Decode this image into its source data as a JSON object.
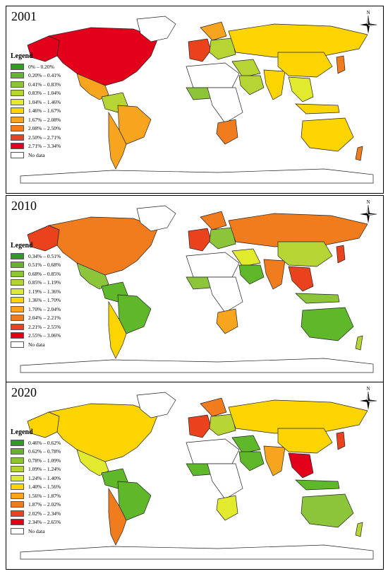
{
  "panels": [
    {
      "year": "2001",
      "legend_title": "Legend",
      "classes": [
        {
          "label": "0% – 0.20%",
          "color": "#2e9e1e"
        },
        {
          "label": "0.20% – 0.41%",
          "color": "#5fb82a"
        },
        {
          "label": "0.41% – 0.83%",
          "color": "#8cc53a"
        },
        {
          "label": "0.83% – 1.04%",
          "color": "#b6d433"
        },
        {
          "label": "1.04% – 1.46%",
          "color": "#e1ea2c"
        },
        {
          "label": "1.46% – 1.67%",
          "color": "#fcd400"
        },
        {
          "label": "1.67% – 2.08%",
          "color": "#f7a51f"
        },
        {
          "label": "2.08% – 2.50%",
          "color": "#f07c1e"
        },
        {
          "label": "2.50% – 2.71%",
          "color": "#e9421c"
        },
        {
          "label": "2.71% – 3.34%",
          "color": "#e3001b"
        }
      ],
      "no_data_label": "No data",
      "region_colors": {
        "north_america": "#e3001b",
        "alaska": "#e3001b",
        "central_america": "#f7a51f",
        "south_america_n": "#b6d433",
        "brazil": "#f7a51f",
        "south_america_s": "#f7a51f",
        "greenland": "#ffffff",
        "western_europe": "#e9421c",
        "scandinavia": "#f7a51f",
        "eastern_europe": "#b6d433",
        "russia": "#fcd400",
        "middle_east": "#b6d433",
        "arabia": "#b6d433",
        "north_africa": "#ffffff",
        "west_africa": "#8cc53a",
        "central_africa": "#ffffff",
        "south_africa": "#f07c1e",
        "india": "#fcd400",
        "china": "#fcd400",
        "se_asia": "#e1ea2c",
        "japan": "#f07c1e",
        "indonesia": "#fcd400",
        "australia": "#fcd400",
        "new_zealand": "#f07c1e",
        "antarctica": "#ffffff"
      }
    },
    {
      "year": "2010",
      "legend_title": "Legend",
      "classes": [
        {
          "label": "0.34% – 0.51%",
          "color": "#2e9e1e"
        },
        {
          "label": "0.51% – 0.68%",
          "color": "#5fb82a"
        },
        {
          "label": "0.68% – 0.85%",
          "color": "#8cc53a"
        },
        {
          "label": "0.85% – 1.19%",
          "color": "#b6d433"
        },
        {
          "label": "1.19% – 1.36%",
          "color": "#e1ea2c"
        },
        {
          "label": "1.36% – 1.70%",
          "color": "#fcd400"
        },
        {
          "label": "1.70% – 2.04%",
          "color": "#f7a51f"
        },
        {
          "label": "2.04% – 2.21%",
          "color": "#f07c1e"
        },
        {
          "label": "2.21% – 2.55%",
          "color": "#e9421c"
        },
        {
          "label": "2.55% – 3.06%",
          "color": "#e3001b"
        }
      ],
      "no_data_label": "No data",
      "region_colors": {
        "north_america": "#f07c1e",
        "alaska": "#e9421c",
        "central_america": "#8cc53a",
        "south_america_n": "#5fb82a",
        "brazil": "#5fb82a",
        "south_america_s": "#fcd400",
        "greenland": "#ffffff",
        "western_europe": "#e9421c",
        "scandinavia": "#f07c1e",
        "eastern_europe": "#8cc53a",
        "russia": "#f07c1e",
        "middle_east": "#e1ea2c",
        "arabia": "#5fb82a",
        "north_africa": "#ffffff",
        "west_africa": "#8cc53a",
        "central_africa": "#ffffff",
        "south_africa": "#f7a51f",
        "india": "#f07c1e",
        "china": "#b6d433",
        "se_asia": "#e9421c",
        "japan": "#e9421c",
        "indonesia": "#8cc53a",
        "australia": "#5fb82a",
        "new_zealand": "#b6d433",
        "antarctica": "#ffffff"
      }
    },
    {
      "year": "2020",
      "legend_title": "Legend",
      "classes": [
        {
          "label": "0.46% – 0.62%",
          "color": "#2e9e1e"
        },
        {
          "label": "0.62% – 0.78%",
          "color": "#5fb82a"
        },
        {
          "label": "0.78% – 1.09%",
          "color": "#8cc53a"
        },
        {
          "label": "1.09% – 1.24%",
          "color": "#b6d433"
        },
        {
          "label": "1.24% – 1.40%",
          "color": "#e1ea2c"
        },
        {
          "label": "1.40% – 1.56%",
          "color": "#fcd400"
        },
        {
          "label": "1.56% – 1.87%",
          "color": "#f7a51f"
        },
        {
          "label": "1.87% – 2.02%",
          "color": "#f07c1e"
        },
        {
          "label": "2.02% – 2.34%",
          "color": "#e9421c"
        },
        {
          "label": "2.34% – 2.65%",
          "color": "#e3001b"
        }
      ],
      "no_data_label": "No data",
      "region_colors": {
        "north_america": "#fcd400",
        "alaska": "#fcd400",
        "central_america": "#e1ea2c",
        "south_america_n": "#5fb82a",
        "brazil": "#5fb82a",
        "south_america_s": "#f07c1e",
        "greenland": "#ffffff",
        "western_europe": "#e9421c",
        "scandinavia": "#f07c1e",
        "eastern_europe": "#b6d433",
        "russia": "#fcd400",
        "middle_east": "#5fb82a",
        "arabia": "#5fb82a",
        "north_africa": "#ffffff",
        "west_africa": "#5fb82a",
        "central_africa": "#ffffff",
        "south_africa": "#e1ea2c",
        "india": "#f7a51f",
        "china": "#fcd400",
        "se_asia": "#e3001b",
        "japan": "#e9421c",
        "indonesia": "#5fb82a",
        "australia": "#8cc53a",
        "new_zealand": "#b6d433",
        "antarctica": "#ffffff"
      }
    }
  ],
  "compass_label": "N"
}
